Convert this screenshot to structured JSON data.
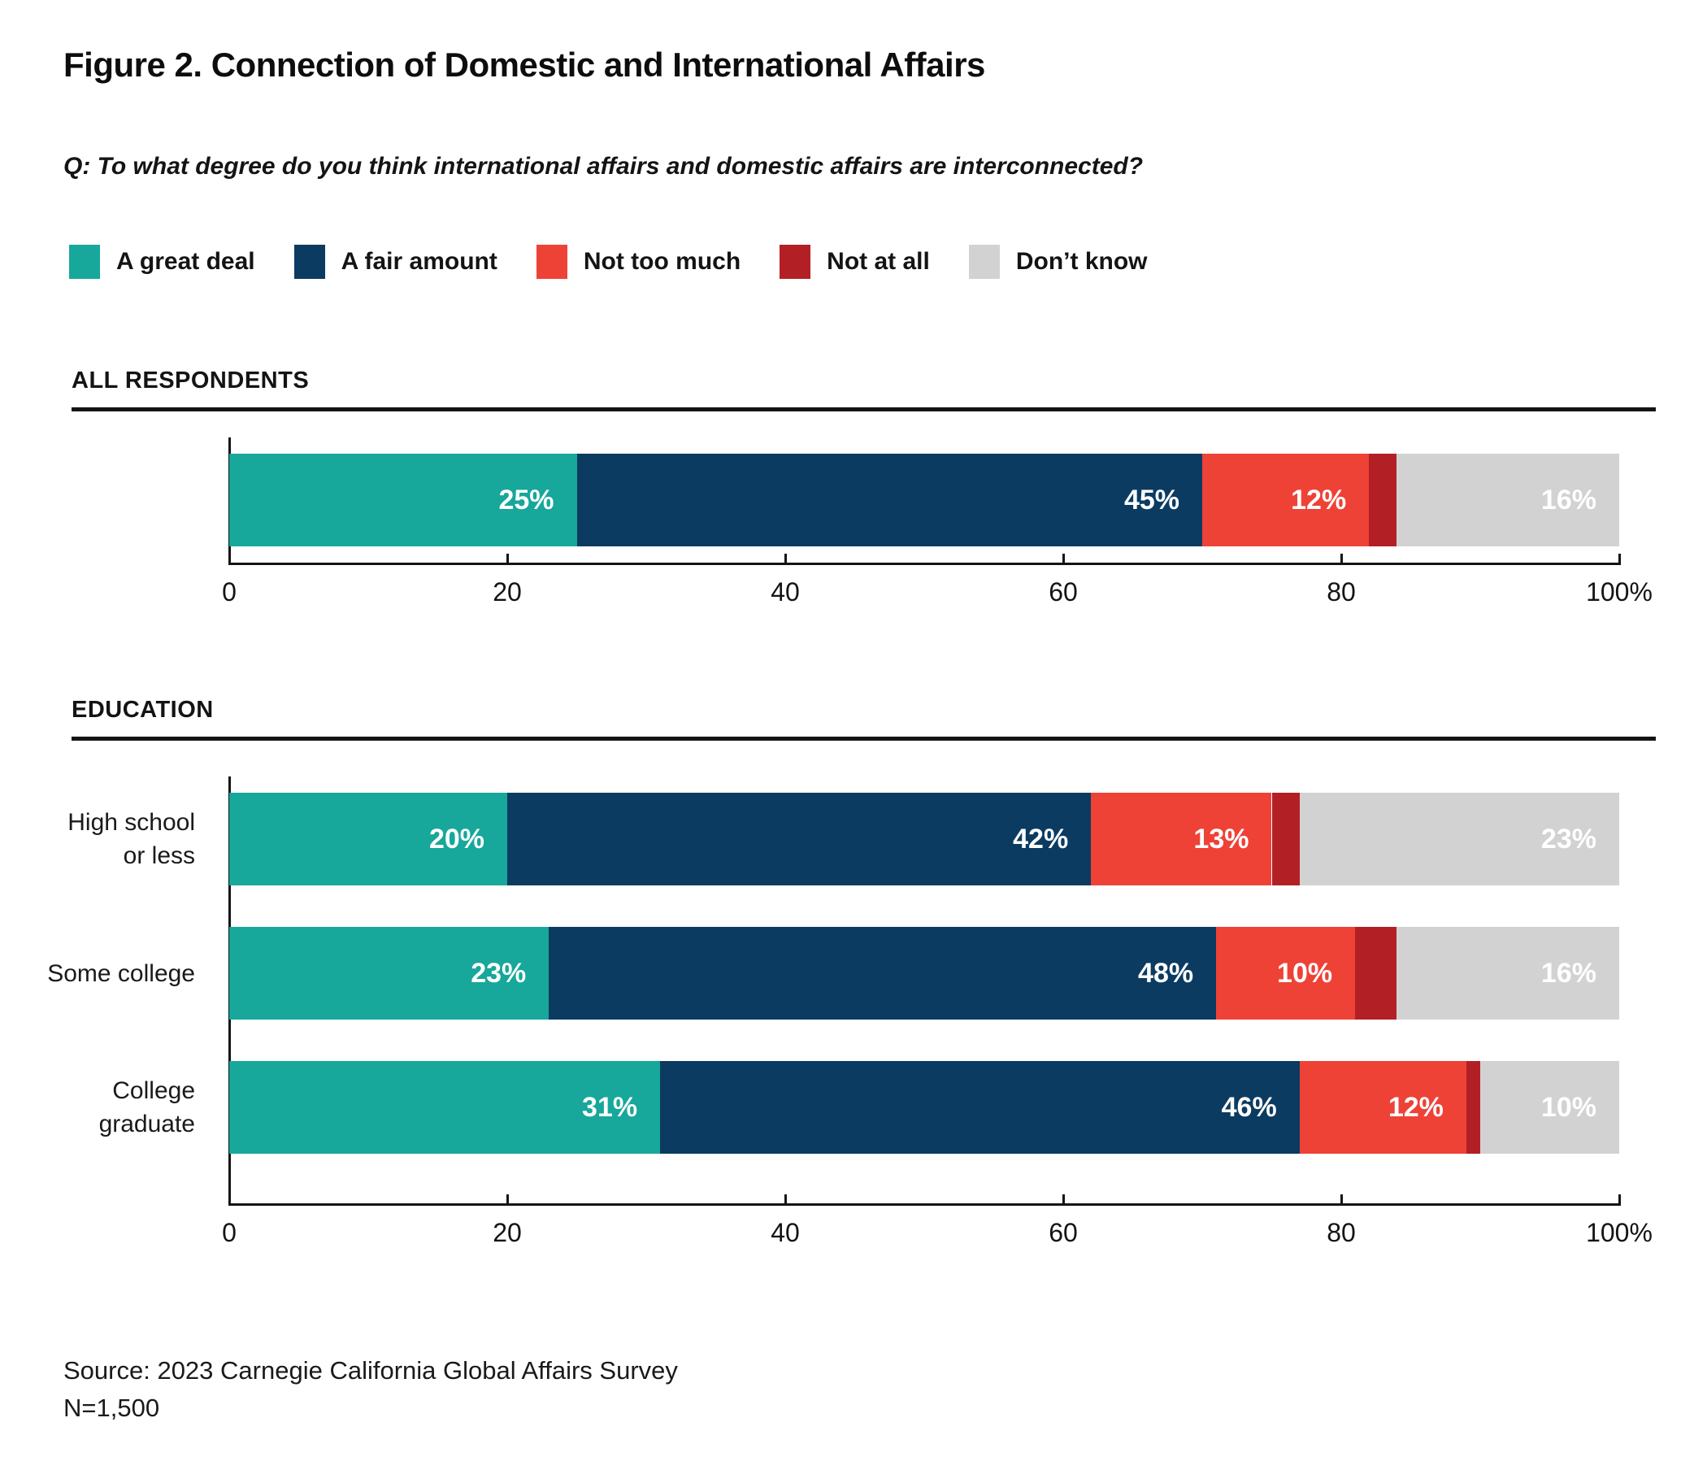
{
  "page": {
    "title": "Figure 2. Connection of Domestic and International Affairs",
    "question": "Q: To what degree do you think international affairs and domestic affairs are interconnected?",
    "source": "Source: 2023 Carnegie California Global Affairs Survey",
    "sample_size": "N=1,500"
  },
  "legend": [
    {
      "label": "A great deal",
      "color": "#17A79B"
    },
    {
      "label": "A fair amount",
      "color": "#0B3B61"
    },
    {
      "label": "Not too much",
      "color": "#EE4237"
    },
    {
      "label": "Not at all",
      "color": "#B22025"
    },
    {
      "label": "Don’t know",
      "color": "#D2D2D3"
    }
  ],
  "chart_data": {
    "type": "bar",
    "orientation": "horizontal",
    "stacked": true,
    "grid": false,
    "series_names": [
      "A great deal",
      "A fair amount",
      "Not too much",
      "Not at all",
      "Don’t know"
    ],
    "colors": [
      "#17A79B",
      "#0B3B61",
      "#EE4237",
      "#B22025",
      "#D2D2D3"
    ],
    "value_label_color": "#FFFFFF",
    "x_axis": {
      "min": 0,
      "max": 100,
      "tick_values": [
        0,
        20,
        40,
        60,
        80,
        100
      ],
      "tick_labels": [
        "0",
        "20",
        "40",
        "60",
        "80",
        "100%"
      ]
    },
    "sections": [
      {
        "name": "ALL RESPONDENTS",
        "rows": [
          {
            "label_lines": [],
            "values": [
              25,
              45,
              12,
              2,
              16
            ],
            "value_labels": [
              "25%",
              "45%",
              "12%",
              "",
              "16%"
            ]
          }
        ]
      },
      {
        "name": "EDUCATION",
        "rows": [
          {
            "label_lines": [
              "High school",
              "or less"
            ],
            "values": [
              20,
              42,
              13,
              2,
              23
            ],
            "value_labels": [
              "20%",
              "42%",
              "13%",
              "",
              "23%"
            ]
          },
          {
            "label_lines": [
              "Some college"
            ],
            "values": [
              23,
              48,
              10,
              3,
              16
            ],
            "value_labels": [
              "23%",
              "48%",
              "10%",
              "",
              "16%"
            ]
          },
          {
            "label_lines": [
              "College",
              "graduate"
            ],
            "values": [
              31,
              46,
              12,
              1,
              10
            ],
            "value_labels": [
              "31%",
              "46%",
              "12%",
              "",
              "10%"
            ]
          }
        ]
      }
    ]
  }
}
